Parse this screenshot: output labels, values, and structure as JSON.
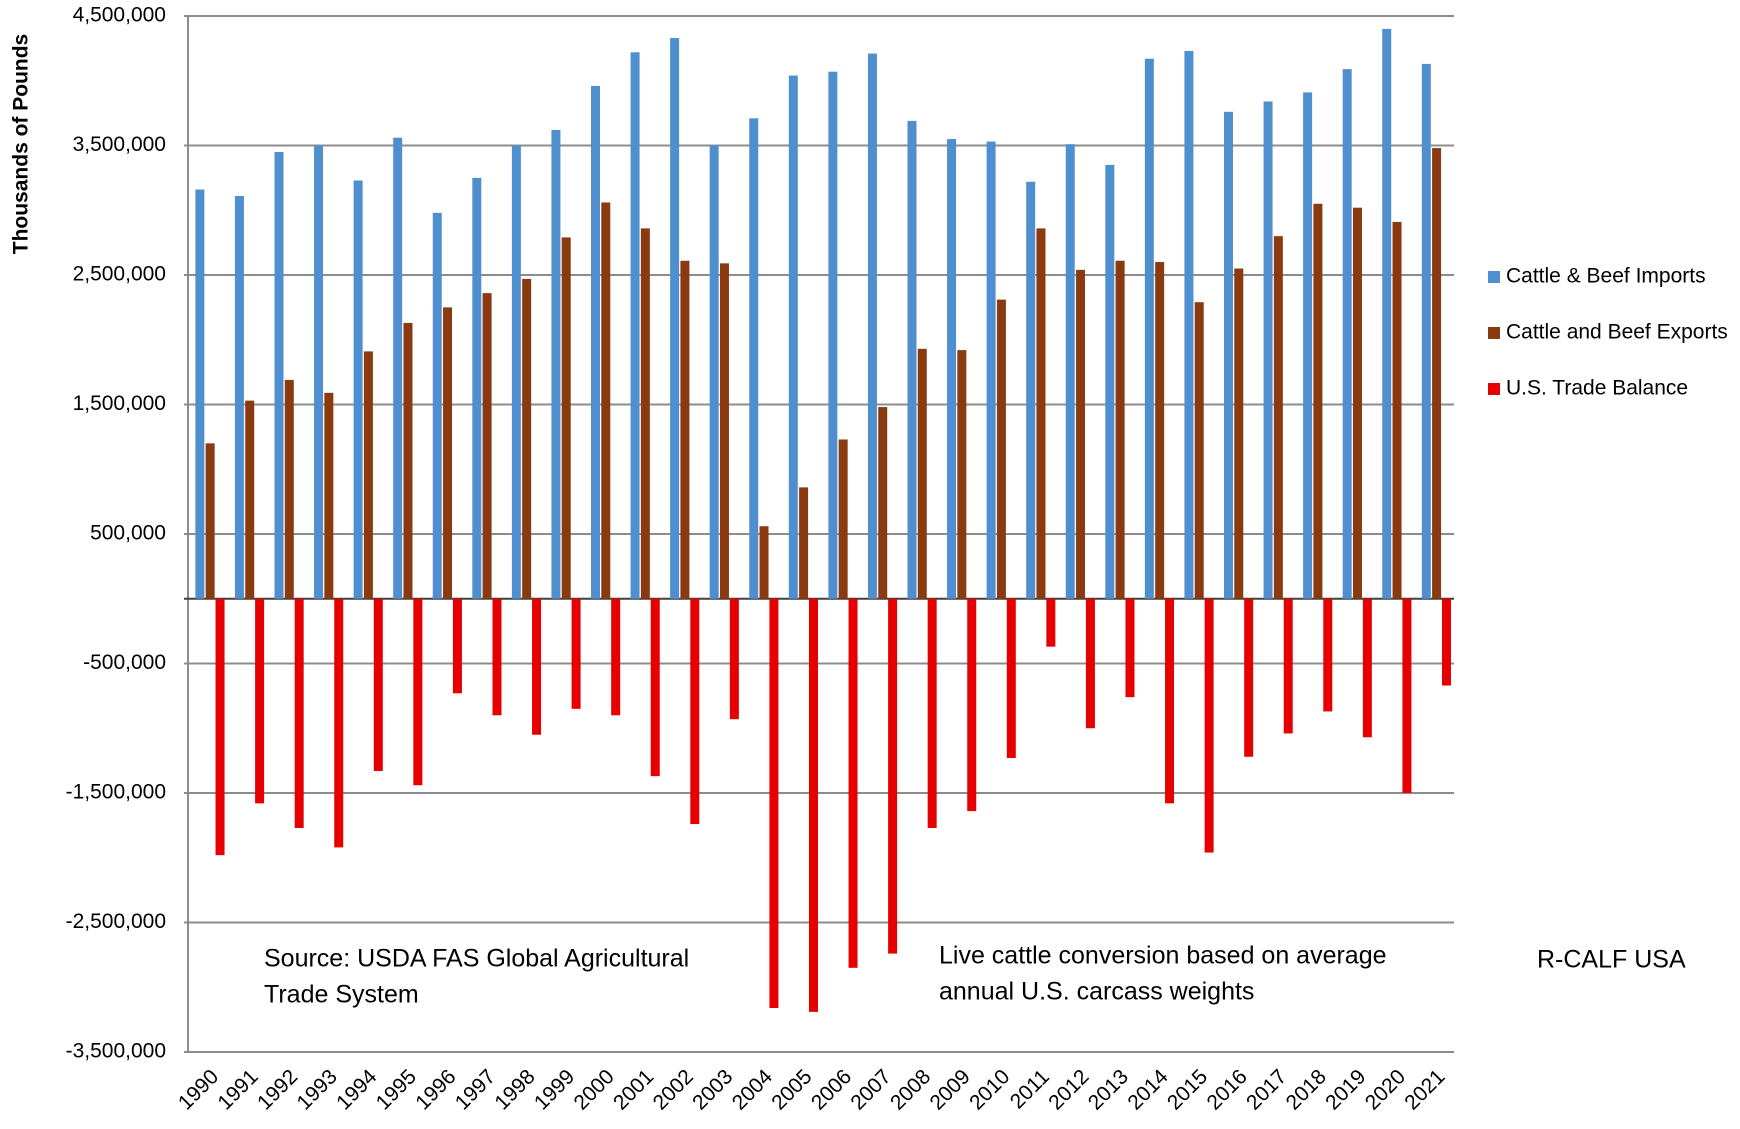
{
  "chart_data": {
    "type": "bar",
    "y_label": "Thousands of Pounds",
    "categories": [
      "1990",
      "1991",
      "1992",
      "1993",
      "1994",
      "1995",
      "1996",
      "1997",
      "1998",
      "1999",
      "2000",
      "2001",
      "2002",
      "2003",
      "2004",
      "2005",
      "2006",
      "2007",
      "2008",
      "2009",
      "2010",
      "2011",
      "2012",
      "2013",
      "2014",
      "2015",
      "2016",
      "2017",
      "2018",
      "2019",
      "2020",
      "2021"
    ],
    "series": [
      {
        "name": "Cattle & Beef Imports",
        "color": "#4f8fd0",
        "values": [
          3160000,
          3110000,
          3450000,
          3500000,
          3230000,
          3560000,
          2980000,
          3250000,
          3500000,
          3620000,
          3960000,
          4220000,
          4330000,
          3500000,
          3710000,
          4040000,
          4070000,
          4210000,
          3690000,
          3550000,
          3530000,
          3220000,
          3510000,
          3350000,
          4170000,
          4230000,
          3760000,
          3840000,
          3910000,
          4090000,
          4400000,
          4130000
        ]
      },
      {
        "name": "Cattle and Beef Exports",
        "color": "#8b3a0f",
        "values": [
          1200000,
          1530000,
          1690000,
          1590000,
          1910000,
          2130000,
          2250000,
          2360000,
          2470000,
          2790000,
          3060000,
          2860000,
          2610000,
          2590000,
          560000,
          860000,
          1230000,
          1480000,
          1930000,
          1920000,
          2310000,
          2860000,
          2540000,
          2610000,
          2600000,
          2290000,
          2550000,
          2800000,
          3050000,
          3020000,
          2910000,
          3480000
        ]
      },
      {
        "name": "U.S. Trade Balance",
        "color": "#e60000",
        "values": [
          -1980000,
          -1580000,
          -1770000,
          -1920000,
          -1330000,
          -1440000,
          -730000,
          -900000,
          -1050000,
          -850000,
          -900000,
          -1370000,
          -1740000,
          -930000,
          -3160000,
          -3190000,
          -2850000,
          -2740000,
          -1770000,
          -1640000,
          -1230000,
          -370000,
          -1000000,
          -760000,
          -1580000,
          -1960000,
          -1220000,
          -1040000,
          -870000,
          -1070000,
          -1500000,
          -670000
        ]
      }
    ],
    "ylim": [
      -3500000,
      4500000
    ],
    "yticks": [
      {
        "value": -3500000,
        "label": "-3,500,000"
      },
      {
        "value": -2500000,
        "label": "-2,500,000"
      },
      {
        "value": -1500000,
        "label": "-1,500,000"
      },
      {
        "value": -500000,
        "label": "-500,000"
      },
      {
        "value": 500000,
        "label": "500,000"
      },
      {
        "value": 1500000,
        "label": "1,500,000"
      },
      {
        "value": 2500000,
        "label": "2,500,000"
      },
      {
        "value": 3500000,
        "label": "3,500,000"
      },
      {
        "value": 4500000,
        "label": "4,500,000"
      }
    ],
    "grid": true,
    "legend": "right",
    "annotations": [
      [
        "Source:  USDA FAS Global Agricultural",
        "Trade System"
      ],
      [
        "Live cattle conversion based on average",
        "annual U.S. carcass weights"
      ],
      [
        "R-CALF USA"
      ]
    ]
  }
}
